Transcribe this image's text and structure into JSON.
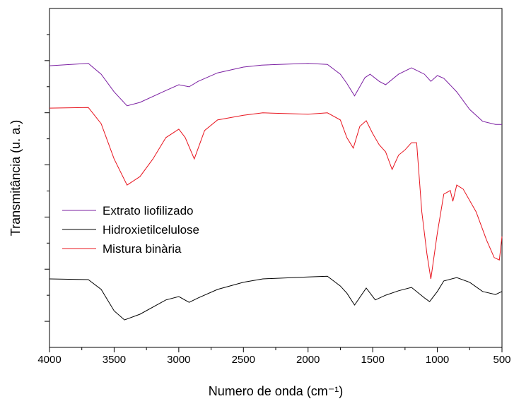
{
  "chart_data": {
    "type": "line",
    "xlabel": "Numero de onda (cm⁻¹)",
    "ylabel": "Transmitância (u. a.)",
    "xlim": [
      4000,
      500
    ],
    "xticks": [
      4000,
      3500,
      3000,
      2500,
      2000,
      1500,
      1000,
      500
    ],
    "ylim": [
      0,
      100
    ],
    "legend": "left",
    "series": [
      {
        "name": "Extrato liofilizado",
        "color": "#7b1fa2",
        "x": [
          4000,
          3700,
          3600,
          3500,
          3400,
          3300,
          3100,
          3000,
          2920,
          2850,
          2700,
          2500,
          2360,
          2000,
          1850,
          1750,
          1700,
          1640,
          1560,
          1520,
          1450,
          1400,
          1300,
          1200,
          1100,
          1050,
          1000,
          950,
          850,
          750,
          650,
          550,
          500
        ],
        "values": [
          83.1,
          83.8,
          80.6,
          75.4,
          71.3,
          72.3,
          75.8,
          77.5,
          76.9,
          78.5,
          81.0,
          82.7,
          83.3,
          83.8,
          83.5,
          80.6,
          77.9,
          74.2,
          79.6,
          80.6,
          78.5,
          77.5,
          80.6,
          82.5,
          80.6,
          78.5,
          80.2,
          79.4,
          75.4,
          70.2,
          66.7,
          65.8,
          65.8
        ]
      },
      {
        "name": "Hidroxietilcelulose",
        "color": "#000000",
        "x": [
          4000,
          3700,
          3600,
          3500,
          3420,
          3300,
          3100,
          3000,
          2920,
          2850,
          2700,
          2500,
          2350,
          2000,
          1850,
          1750,
          1700,
          1640,
          1550,
          1480,
          1400,
          1300,
          1200,
          1100,
          1060,
          1000,
          950,
          850,
          750,
          650,
          550,
          500
        ],
        "values": [
          20.2,
          20.0,
          17.1,
          10.8,
          8.1,
          9.8,
          14.0,
          15.0,
          13.3,
          14.6,
          17.1,
          19.2,
          20.2,
          20.8,
          21.0,
          18.1,
          16.0,
          12.5,
          17.5,
          14.0,
          15.4,
          16.7,
          17.7,
          14.6,
          13.5,
          16.5,
          19.6,
          20.6,
          19.2,
          16.5,
          15.6,
          16.5
        ]
      },
      {
        "name": "Mistura binària",
        "color": "#e8141e",
        "x": [
          4000,
          3700,
          3600,
          3500,
          3400,
          3300,
          3200,
          3100,
          3000,
          2950,
          2880,
          2800,
          2700,
          2500,
          2350,
          2000,
          1850,
          1750,
          1700,
          1650,
          1600,
          1550,
          1500,
          1450,
          1400,
          1350,
          1300,
          1250,
          1200,
          1160,
          1120,
          1080,
          1050,
          1000,
          950,
          900,
          880,
          850,
          800,
          700,
          620,
          560,
          520,
          500
        ],
        "values": [
          70.6,
          70.8,
          66.0,
          55.6,
          47.9,
          50.4,
          55.6,
          61.9,
          64.4,
          61.9,
          55.6,
          64.0,
          67.1,
          68.5,
          69.2,
          68.8,
          69.2,
          67.1,
          61.9,
          58.8,
          65.2,
          66.9,
          63.1,
          59.8,
          57.7,
          52.5,
          56.7,
          58.3,
          60.4,
          60.4,
          40.0,
          27.5,
          20.2,
          33.8,
          45.2,
          46.3,
          43.1,
          47.9,
          46.7,
          40.0,
          31.7,
          26.5,
          25.8,
          32.7
        ]
      }
    ]
  }
}
